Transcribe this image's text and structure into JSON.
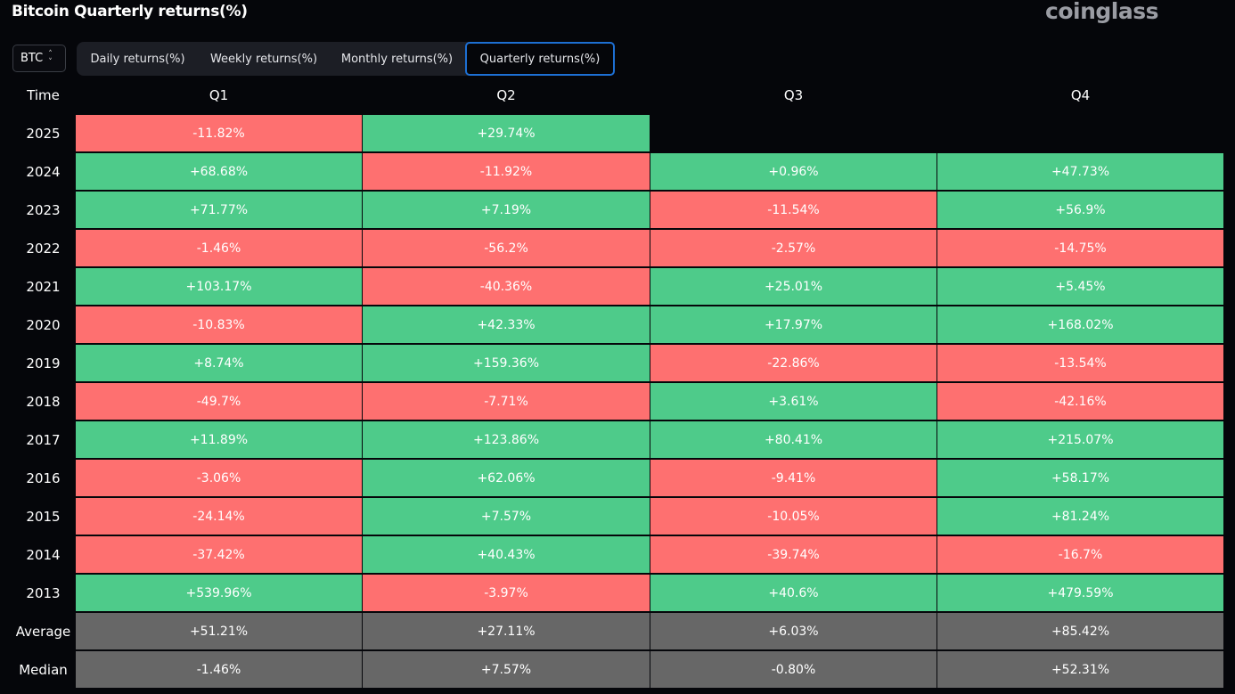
{
  "header": {
    "title": "Bitcoin Quarterly returns(%)",
    "brand": "coinglass"
  },
  "asset_select": {
    "value": "BTC"
  },
  "tabs": [
    {
      "label": "Daily returns(%)",
      "active": false
    },
    {
      "label": "Weekly returns(%)",
      "active": false
    },
    {
      "label": "Monthly returns(%)",
      "active": false
    },
    {
      "label": "Quarterly returns(%)",
      "active": true
    }
  ],
  "colors": {
    "positive": "#4ecb8a",
    "negative": "#fe7070",
    "summary": "#676767",
    "active_tab_border": "#1d6fd3"
  },
  "table": {
    "columns": [
      "Time",
      "Q1",
      "Q2",
      "Q3",
      "Q4"
    ],
    "rows": [
      {
        "label": "2025",
        "cells": [
          "-11.82%",
          "+29.74%",
          "",
          ""
        ]
      },
      {
        "label": "2024",
        "cells": [
          "+68.68%",
          "-11.92%",
          "+0.96%",
          "+47.73%"
        ]
      },
      {
        "label": "2023",
        "cells": [
          "+71.77%",
          "+7.19%",
          "-11.54%",
          "+56.9%"
        ]
      },
      {
        "label": "2022",
        "cells": [
          "-1.46%",
          "-56.2%",
          "-2.57%",
          "-14.75%"
        ]
      },
      {
        "label": "2021",
        "cells": [
          "+103.17%",
          "-40.36%",
          "+25.01%",
          "+5.45%"
        ]
      },
      {
        "label": "2020",
        "cells": [
          "-10.83%",
          "+42.33%",
          "+17.97%",
          "+168.02%"
        ]
      },
      {
        "label": "2019",
        "cells": [
          "+8.74%",
          "+159.36%",
          "-22.86%",
          "-13.54%"
        ]
      },
      {
        "label": "2018",
        "cells": [
          "-49.7%",
          "-7.71%",
          "+3.61%",
          "-42.16%"
        ]
      },
      {
        "label": "2017",
        "cells": [
          "+11.89%",
          "+123.86%",
          "+80.41%",
          "+215.07%"
        ]
      },
      {
        "label": "2016",
        "cells": [
          "-3.06%",
          "+62.06%",
          "-9.41%",
          "+58.17%"
        ]
      },
      {
        "label": "2015",
        "cells": [
          "-24.14%",
          "+7.57%",
          "-10.05%",
          "+81.24%"
        ]
      },
      {
        "label": "2014",
        "cells": [
          "-37.42%",
          "+40.43%",
          "-39.74%",
          "-16.7%"
        ]
      },
      {
        "label": "2013",
        "cells": [
          "+539.96%",
          "-3.97%",
          "+40.6%",
          "+479.59%"
        ]
      }
    ],
    "summary": [
      {
        "label": "Average",
        "cells": [
          "+51.21%",
          "+27.11%",
          "+6.03%",
          "+85.42%"
        ]
      },
      {
        "label": "Median",
        "cells": [
          "-1.46%",
          "+7.57%",
          "-0.80%",
          "+52.31%"
        ]
      }
    ]
  }
}
